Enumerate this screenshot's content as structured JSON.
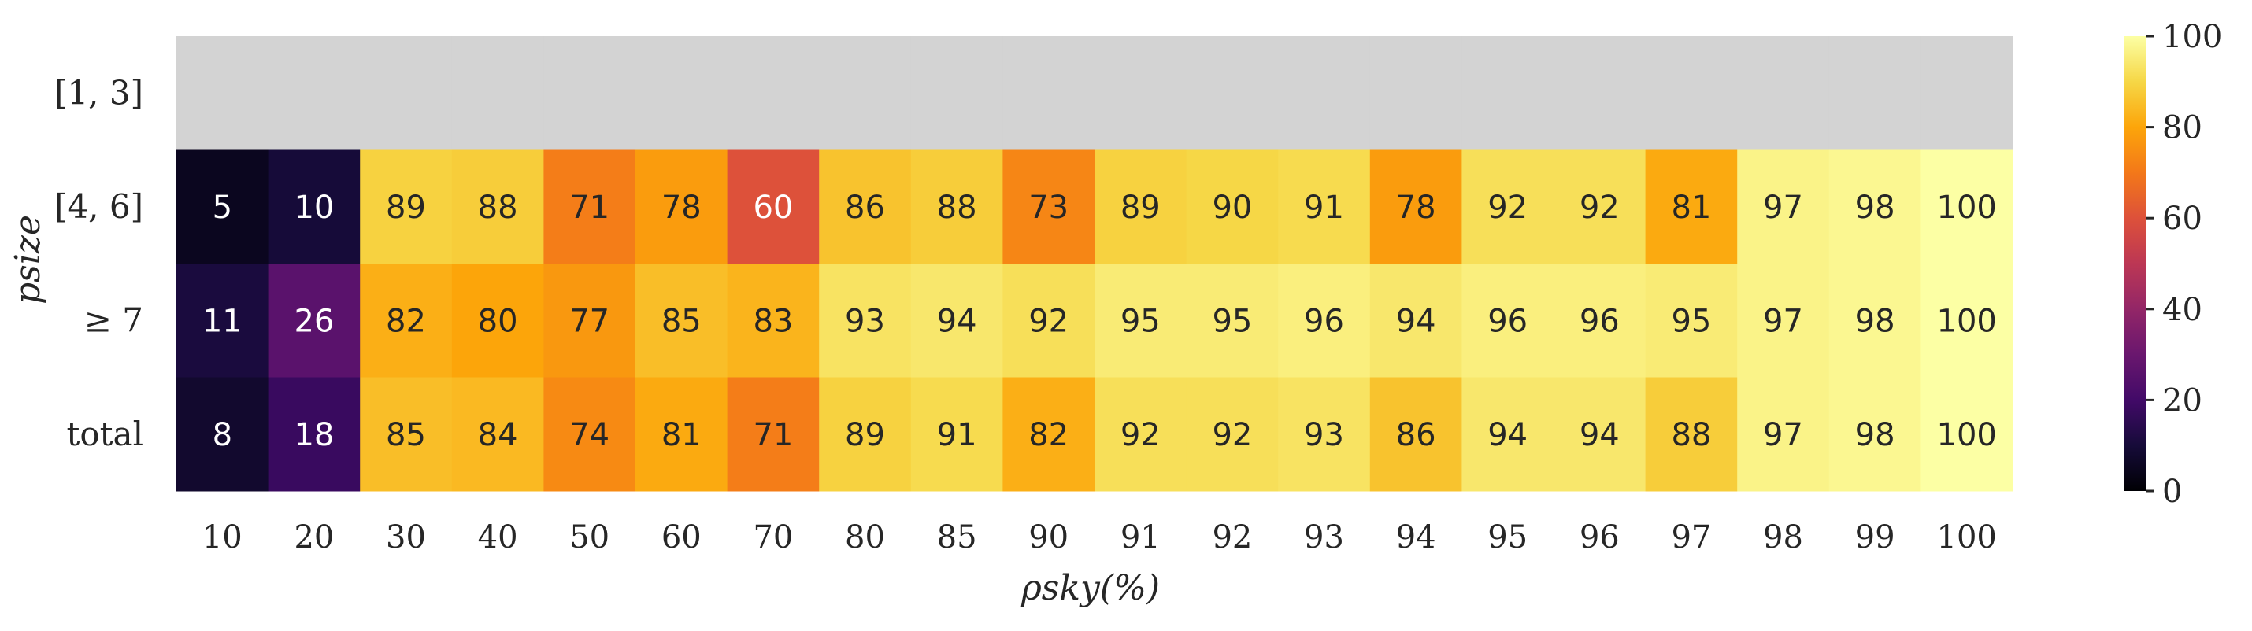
{
  "chart_data": {
    "type": "heatmap",
    "title": "",
    "xlabel": "ρsky(%)",
    "ylabel": "psize",
    "x_categories": [
      "10",
      "20",
      "30",
      "40",
      "50",
      "60",
      "70",
      "80",
      "85",
      "90",
      "91",
      "92",
      "93",
      "94",
      "95",
      "96",
      "97",
      "98",
      "99",
      "100"
    ],
    "y_categories": [
      "[1, 3]",
      "[4, 6]",
      "≥ 7",
      "total"
    ],
    "values": [
      [
        null,
        null,
        null,
        null,
        null,
        null,
        null,
        null,
        null,
        null,
        null,
        null,
        null,
        null,
        null,
        null,
        null,
        null,
        null,
        null
      ],
      [
        5,
        10,
        89,
        88,
        71,
        78,
        60,
        86,
        88,
        73,
        89,
        90,
        91,
        78,
        92,
        92,
        81,
        97,
        98,
        100
      ],
      [
        11,
        26,
        82,
        80,
        77,
        85,
        83,
        93,
        94,
        92,
        95,
        95,
        96,
        94,
        96,
        96,
        95,
        97,
        98,
        100
      ],
      [
        8,
        18,
        85,
        84,
        74,
        81,
        71,
        89,
        91,
        82,
        92,
        92,
        93,
        86,
        94,
        94,
        88,
        97,
        98,
        100
      ]
    ],
    "missing_color": "#d3d3d3",
    "colormap": "inferno",
    "vmin": 0,
    "vmax": 100,
    "colorbar_ticks": [
      "0",
      "20",
      "40",
      "60",
      "80",
      "100"
    ],
    "grid": false
  }
}
